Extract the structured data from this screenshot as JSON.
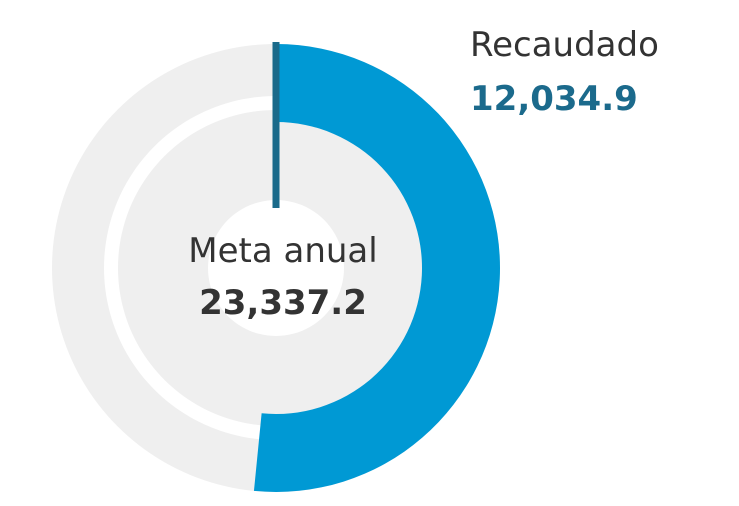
{
  "chart_data": {
    "type": "gauge-donut",
    "series": [
      {
        "name": "Meta anual",
        "color": "#efefef",
        "values": [
          23337.2
        ],
        "value_labels": [
          "23,337.2"
        ]
      },
      {
        "name": "Recaudado",
        "color": "#0099d4",
        "values": [
          12034.9
        ],
        "value_labels": [
          "12,034.9"
        ]
      }
    ]
  }
}
